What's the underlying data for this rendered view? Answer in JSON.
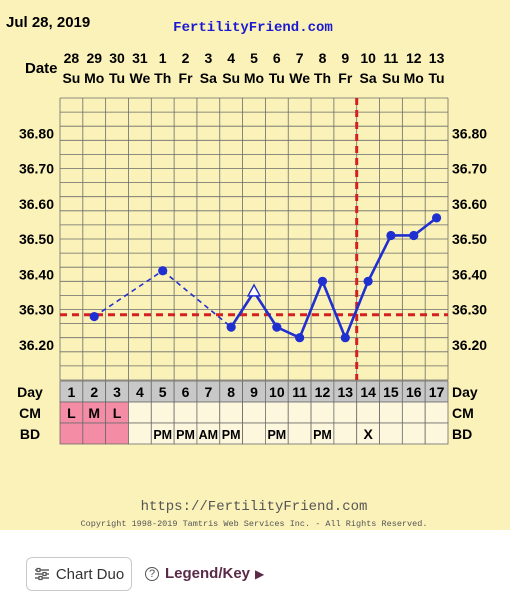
{
  "header": {
    "date": "Jul 28, 2019",
    "site": "FertilityFriend.com",
    "date_row_label": "Date"
  },
  "chart_data": {
    "type": "line",
    "dates": [
      "28",
      "29",
      "30",
      "31",
      "1",
      "2",
      "3",
      "4",
      "5",
      "6",
      "7",
      "8",
      "9",
      "10",
      "11",
      "12",
      "13"
    ],
    "weekdays": [
      "Su",
      "Mo",
      "Tu",
      "We",
      "Th",
      "Fr",
      "Sa",
      "Su",
      "Mo",
      "Tu",
      "We",
      "Th",
      "Fr",
      "Sa",
      "Su",
      "Mo",
      "Tu"
    ],
    "y_ticks": [
      "36.80",
      "36.70",
      "36.60",
      "36.50",
      "36.40",
      "36.30",
      "36.20"
    ],
    "ylim": [
      36.1,
      36.9
    ],
    "points": [
      {
        "day": 2,
        "temp": 36.28,
        "marker": "dot"
      },
      {
        "day": 5,
        "temp": 36.41,
        "marker": "dot"
      },
      {
        "day": 8,
        "temp": 36.25,
        "marker": "dot"
      },
      {
        "day": 9,
        "temp": 36.35,
        "marker": "open-triangle"
      },
      {
        "day": 10,
        "temp": 36.25,
        "marker": "dot"
      },
      {
        "day": 11,
        "temp": 36.22,
        "marker": "dot"
      },
      {
        "day": 12,
        "temp": 36.38,
        "marker": "dot"
      },
      {
        "day": 13,
        "temp": 36.22,
        "marker": "dot"
      },
      {
        "day": 14,
        "temp": 36.38,
        "marker": "dot"
      },
      {
        "day": 15,
        "temp": 36.51,
        "marker": "dot"
      },
      {
        "day": 16,
        "temp": 36.51,
        "marker": "dot"
      },
      {
        "day": 17,
        "temp": 36.56,
        "marker": "dot"
      }
    ],
    "dashed_segments": [
      [
        2,
        5
      ],
      [
        5,
        8
      ]
    ],
    "coverline": 36.285,
    "ovulation_day": 13,
    "rows": [
      {
        "label": "Day",
        "values": [
          "1",
          "2",
          "3",
          "4",
          "5",
          "6",
          "7",
          "8",
          "9",
          "10",
          "11",
          "12",
          "13",
          "14",
          "15",
          "16",
          "17"
        ]
      },
      {
        "label": "CM",
        "values": [
          "L",
          "M",
          "L",
          "",
          "",
          "",
          "",
          "",
          "",
          "",
          "",
          "",
          "",
          "",
          "",
          "",
          ""
        ]
      },
      {
        "label": "BD",
        "values": [
          "",
          "",
          "",
          "",
          "PM",
          "PM",
          "AM",
          "PM",
          "",
          "PM",
          "",
          "PM",
          "",
          "X",
          "",
          "",
          ""
        ]
      }
    ],
    "colors": {
      "line": "#1f2fd0",
      "coverline": "#d42020",
      "panel": "#fbf2b9",
      "menstruation": "#f48ca6",
      "day_cell": "#c8c8c8",
      "row_cell": "#fdf7de"
    }
  },
  "footer": {
    "url": "https://FertilityFriend.com",
    "copyright": "Copyright 1998-2019 Tamtris Web Services Inc. - All Rights Reserved."
  },
  "buttons": {
    "chart_duo": "Chart Duo",
    "legend": "Legend/Key"
  }
}
